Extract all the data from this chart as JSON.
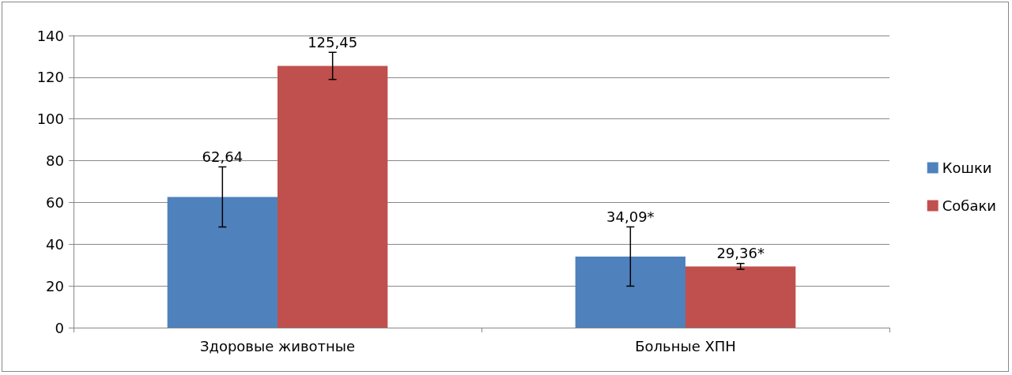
{
  "chart_data": {
    "type": "bar",
    "categories": [
      "Здоровые животные",
      "Больные ХПН"
    ],
    "series": [
      {
        "name": "Кошки",
        "color": "#4f81bd",
        "values": [
          62.64,
          34.09
        ],
        "errors": [
          14.4,
          14.2
        ],
        "value_labels": [
          "62,64",
          "34,09*"
        ]
      },
      {
        "name": "Собаки",
        "color": "#c0504d",
        "values": [
          125.45,
          29.36
        ],
        "errors": [
          6.5,
          1.4
        ],
        "value_labels": [
          "125,45",
          "29,36*"
        ]
      }
    ],
    "ylim": [
      0,
      140
    ],
    "yticks": [
      0,
      20,
      40,
      60,
      80,
      100,
      120,
      140
    ],
    "grid": "y",
    "legend": "right"
  }
}
